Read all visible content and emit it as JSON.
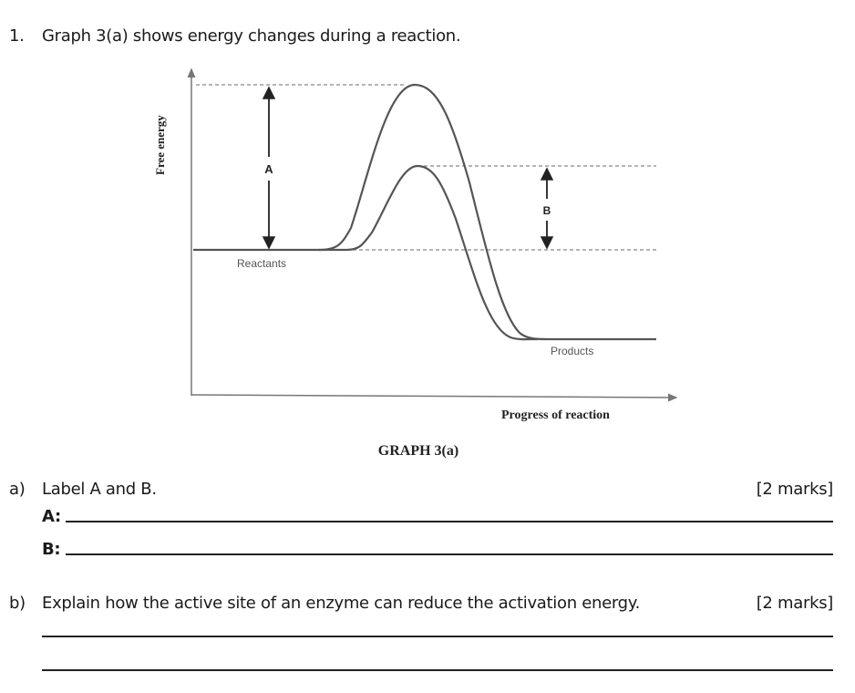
{
  "question": {
    "number": "1.",
    "text": "Graph 3(a) shows energy changes during a reaction."
  },
  "graph": {
    "y_axis_label": "Free energy",
    "x_axis_label": "Progress of reaction",
    "reactants_label": "Reactants",
    "products_label": "Products",
    "arrow_a_label": "A",
    "arrow_b_label": "B",
    "caption": "GRAPH 3(a)"
  },
  "part_a": {
    "letter": "a)",
    "text": "Label A and B.",
    "marks": "[2 marks]",
    "answer_a_label": "A:",
    "answer_b_label": "B:"
  },
  "part_b": {
    "letter": "b)",
    "text": "Explain how the active site of an enzyme can reduce the activation energy.",
    "marks": "[2 marks]"
  }
}
